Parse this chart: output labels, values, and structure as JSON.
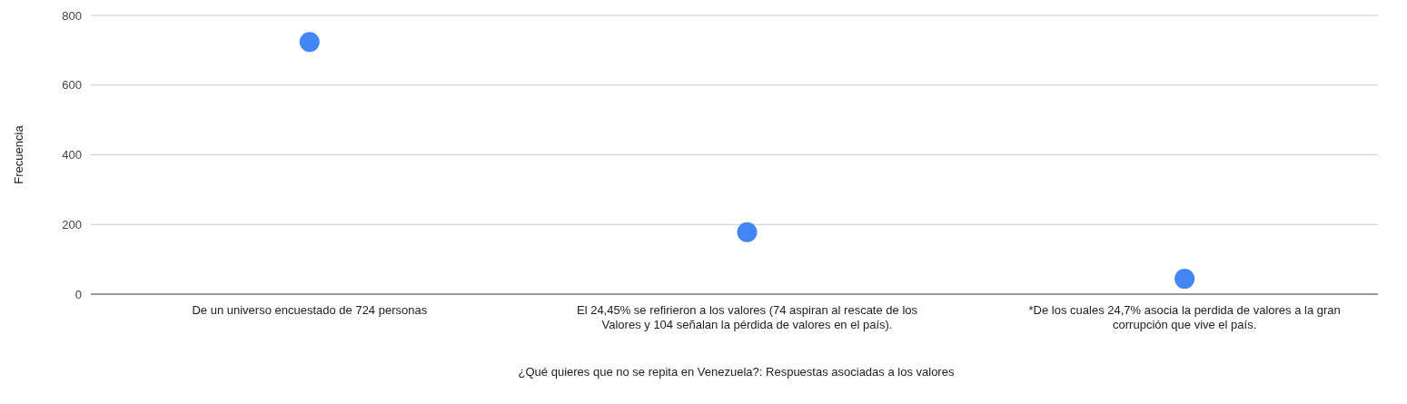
{
  "chart_data": {
    "type": "scatter",
    "xlabel": "¿Qué quieres que no se repita en Venezuela?: Respuestas asociadas a los valores",
    "ylabel": "Frecuencia",
    "categories": [
      "De un universo encuestado de 724 personas",
      "El 24,45% se refirieron a los valores (74 aspiran al rescate de los Valores y 104 señalan la pérdida de valores en el país).",
      "*De los cuales 24,7% asocia la perdida de valores a la gran corrupción que vive el país."
    ],
    "values": [
      724,
      178,
      44
    ],
    "color": "#4285f4",
    "marker": "circle",
    "ylim": [
      0,
      800
    ],
    "yticks": [
      0,
      200,
      400,
      600,
      800
    ],
    "grid": "y"
  }
}
